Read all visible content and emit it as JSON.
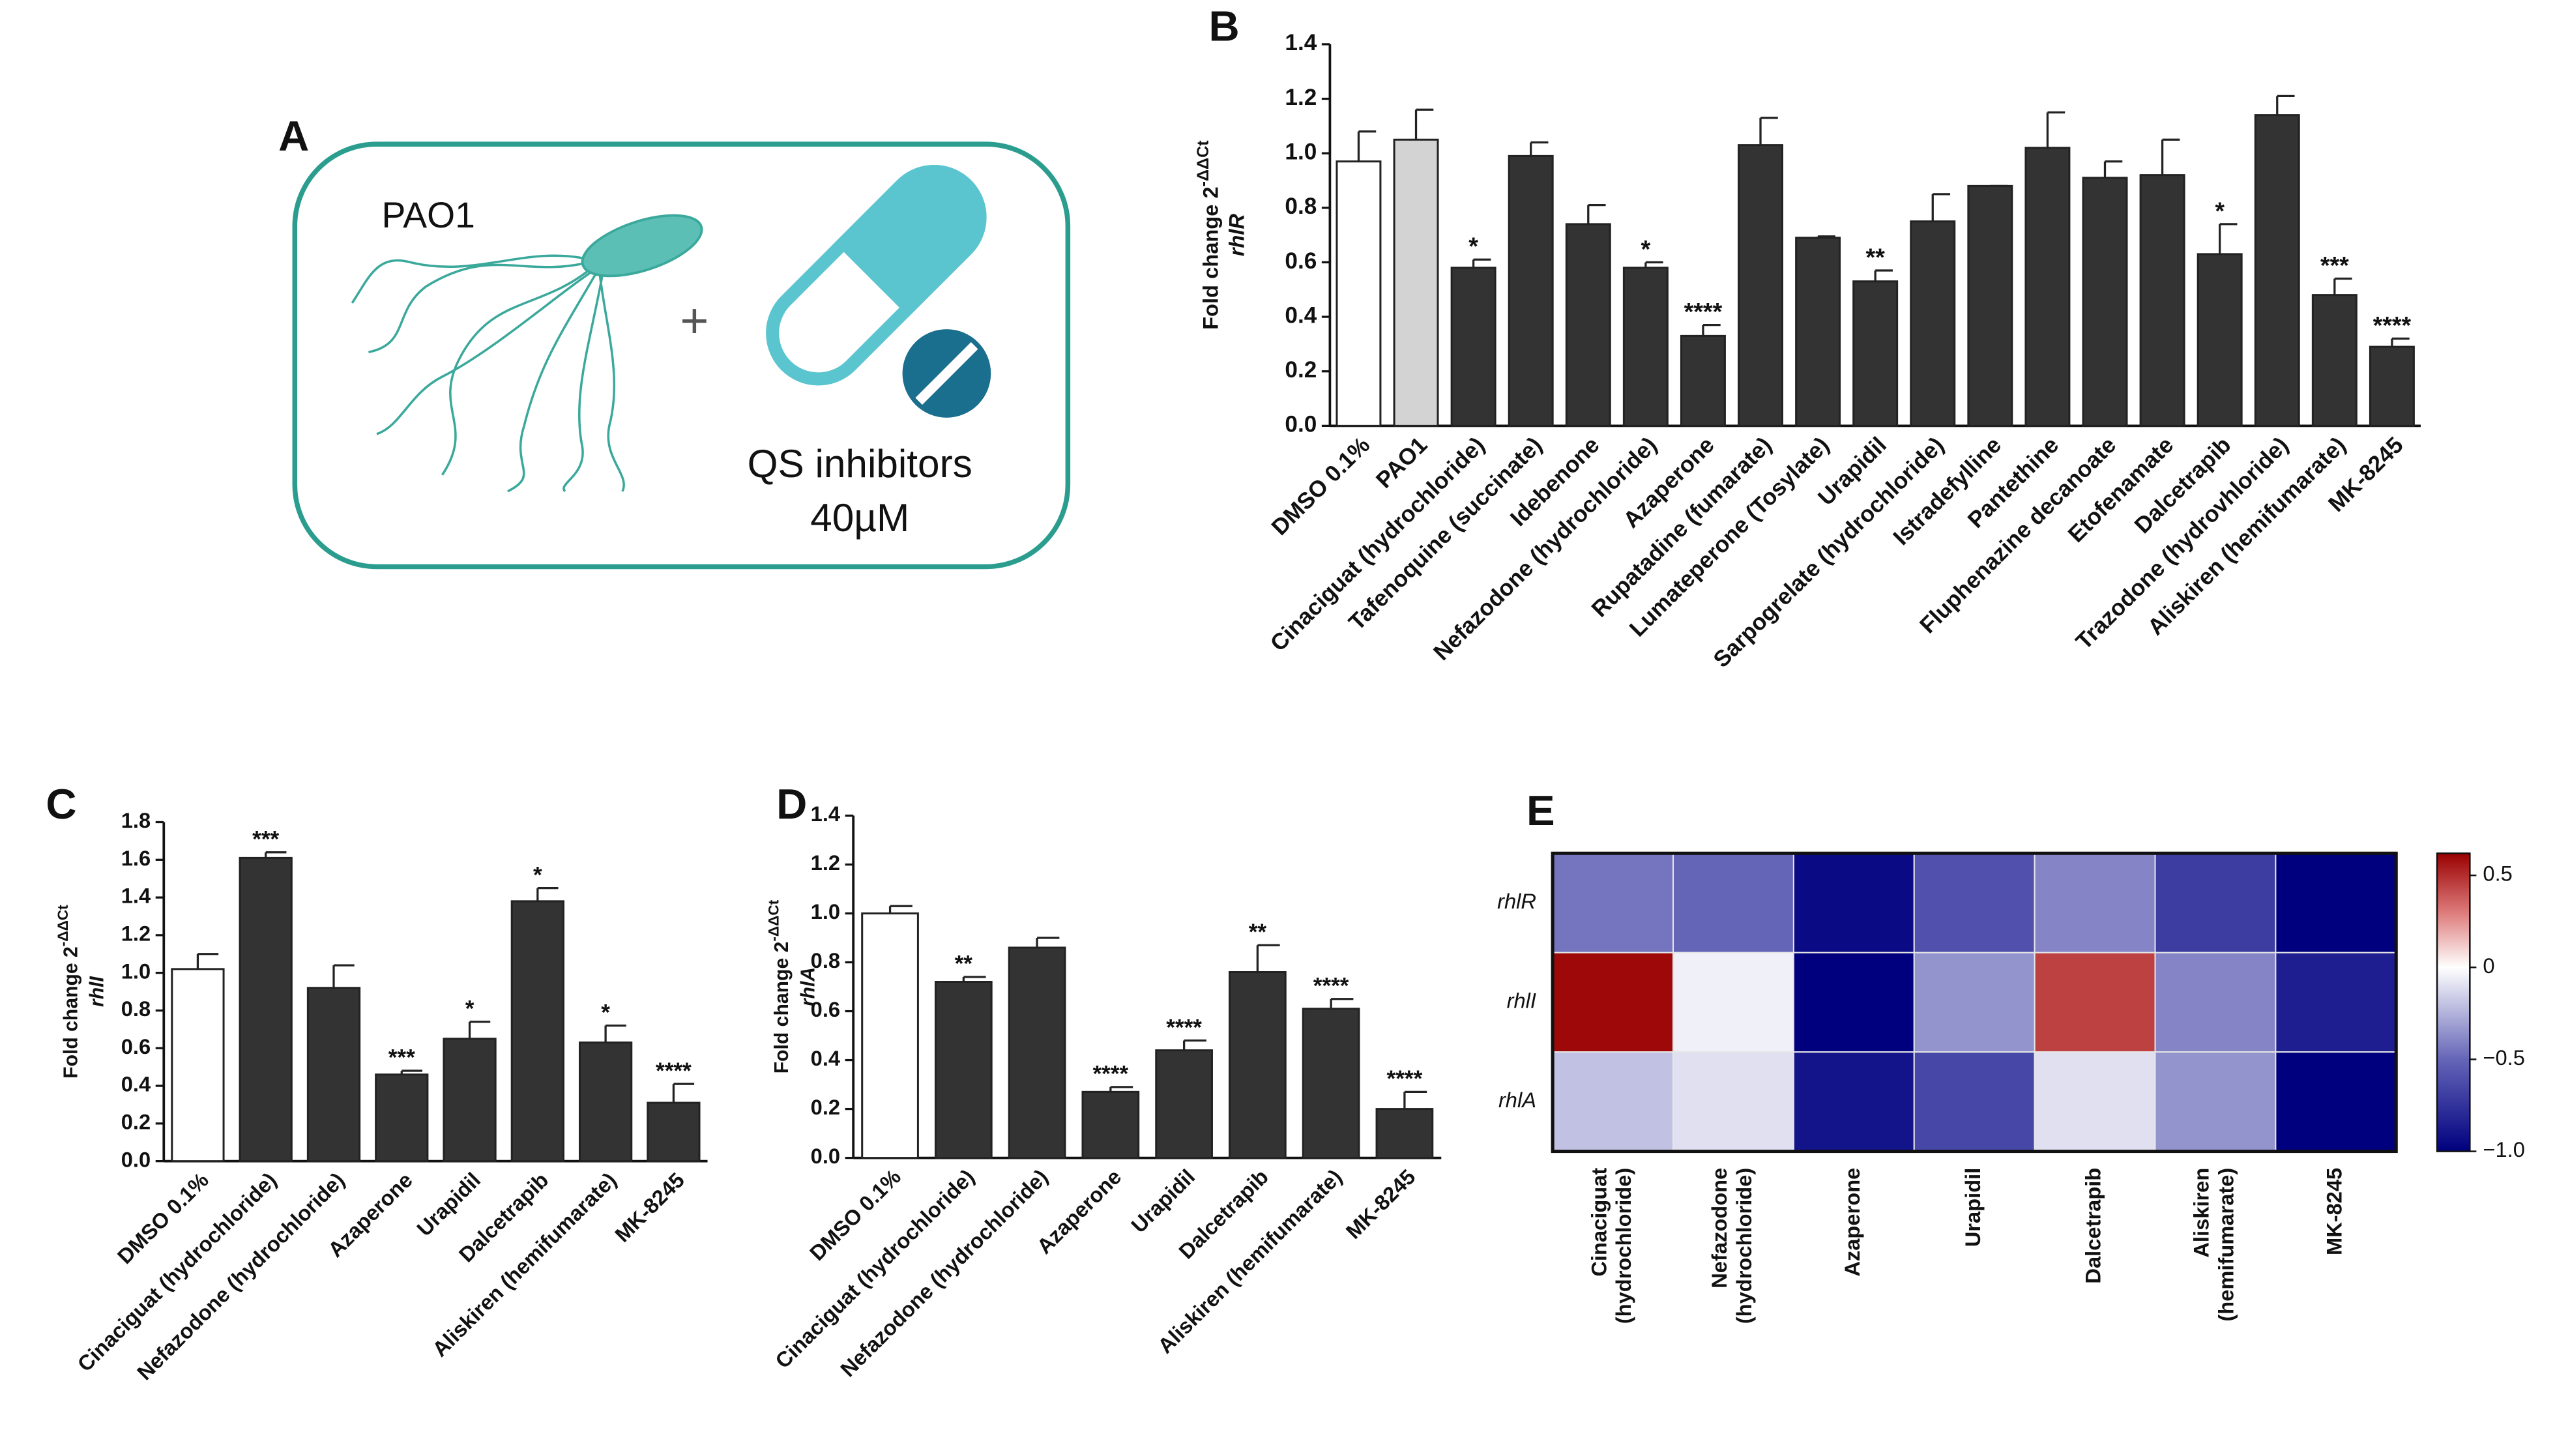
{
  "panel_a": {
    "panel_label": "A",
    "organism": "PAO1",
    "plus": "+",
    "drug_line1": "QS inhibitors",
    "drug_line2": "40µM"
  },
  "chart_data": [
    {
      "type": "bar",
      "panel_label": "B",
      "y_label": "Fold change 2",
      "y_label_sup": "-ΔΔCt",
      "gene": "rhlR",
      "categories": [
        "DMSO 0.1%",
        "PAO1",
        "Cinaciguat (hydrochloride)",
        "Tafenoquine (succinate)",
        "Idebenone",
        "Nefazodone (hydrochloride)",
        "Azaperone",
        "Rupatadine (fumarate)",
        "Lumateperone (Tosylate)",
        "Urapidil",
        "Sarpogrelate (hydrochloride)",
        "Istradefylline",
        "Pantethine",
        "Fluphenazine decanoate",
        "Etofenamate",
        "Dalcetrapib",
        "Trazodone (hydrovhloride)",
        "Aliskiren (hemifumarate)",
        "MK-8245"
      ],
      "values": [
        0.97,
        1.05,
        0.58,
        0.99,
        0.74,
        0.58,
        0.33,
        1.03,
        0.69,
        0.53,
        0.75,
        0.88,
        1.02,
        0.91,
        0.92,
        0.63,
        1.14,
        0.48,
        0.29
      ],
      "errors": [
        0.11,
        0.11,
        0.03,
        0.05,
        0.07,
        0.02,
        0.04,
        0.1,
        0.005,
        0.04,
        0.1,
        0,
        0.13,
        0.06,
        0.13,
        0.11,
        0.07,
        0.06,
        0.03
      ],
      "significance": [
        null,
        null,
        "*",
        null,
        null,
        "*",
        "****",
        null,
        null,
        "**",
        null,
        null,
        null,
        null,
        null,
        "*",
        null,
        "***",
        "****"
      ],
      "bar_colors": [
        "#ffffff",
        "#d3d3d3",
        "#333333",
        "#333333",
        "#333333",
        "#333333",
        "#333333",
        "#333333",
        "#333333",
        "#333333",
        "#333333",
        "#333333",
        "#333333",
        "#333333",
        "#333333",
        "#333333",
        "#333333",
        "#333333",
        "#333333"
      ],
      "ylim": [
        0,
        1.4
      ],
      "yticks": [
        {
          "value": 0,
          "label": "0.0"
        },
        0.2,
        0.4,
        0.6,
        0.8,
        {
          "value": 1,
          "label": "1.0"
        },
        1.2,
        1.4
      ]
    },
    {
      "type": "bar",
      "panel_label": "C",
      "y_label": "Fold change 2",
      "y_label_sup": "-ΔΔCt",
      "gene": "rhlI",
      "categories": [
        "DMSO 0.1%",
        "Cinaciguat (hydrochloride)",
        "Nefazodone (hydrochloride)",
        "Azaperone",
        "Urapidil",
        "Dalcetrapib",
        "Aliskiren (hemifumarate)",
        "MK-8245"
      ],
      "values": [
        1.02,
        1.61,
        0.92,
        0.46,
        0.65,
        1.38,
        0.63,
        0.31
      ],
      "errors": [
        0.08,
        0.03,
        0.12,
        0.02,
        0.09,
        0.07,
        0.09,
        0.1
      ],
      "significance": [
        null,
        "***",
        null,
        "***",
        "*",
        "*",
        "*",
        "****"
      ],
      "bar_colors": [
        "#ffffff",
        "#333333",
        "#333333",
        "#333333",
        "#333333",
        "#333333",
        "#333333",
        "#333333"
      ],
      "ylim": [
        0,
        1.8
      ],
      "yticks": [
        {
          "value": 0,
          "label": "0.0"
        },
        0.2,
        0.4,
        0.6,
        0.8,
        {
          "value": 1,
          "label": "1.0"
        },
        1.2,
        1.4,
        1.6,
        1.8
      ]
    },
    {
      "type": "bar",
      "panel_label": "D",
      "y_label": "Fold change 2",
      "y_label_sup": "-ΔΔCt",
      "gene": "rhlA",
      "categories": [
        "DMSO 0.1%",
        "Cinaciguat (hydrochloride)",
        "Nefazodone (hydrochloride)",
        "Azaperone",
        "Urapidil",
        "Dalcetrapib",
        "Aliskiren (hemifumarate)",
        "MK-8245"
      ],
      "values": [
        1.0,
        0.72,
        0.86,
        0.27,
        0.44,
        0.76,
        0.61,
        0.2
      ],
      "errors": [
        0.03,
        0.02,
        0.04,
        0.02,
        0.04,
        0.11,
        0.04,
        0.07
      ],
      "significance": [
        null,
        "**",
        null,
        "****",
        "****",
        "**",
        "****",
        "****"
      ],
      "bar_colors": [
        "#ffffff",
        "#333333",
        "#333333",
        "#333333",
        "#333333",
        "#333333",
        "#333333",
        "#333333"
      ],
      "ylim": [
        0,
        1.4
      ],
      "yticks": [
        {
          "value": 0,
          "label": "0.0"
        },
        0.2,
        0.4,
        0.6,
        0.8,
        {
          "value": 1,
          "label": "1.0"
        },
        1.2,
        1.4
      ]
    },
    {
      "type": "heatmap",
      "panel_label": "E",
      "rows": [
        "rhlR",
        "rhlI",
        "rhlA"
      ],
      "columns": [
        [
          "Cinaciguat",
          "(hydrochloride)"
        ],
        [
          "Nefazodone",
          "(hydrochloride)"
        ],
        [
          "Azaperone"
        ],
        [
          "Urapidil"
        ],
        [
          "Dalcetrapib"
        ],
        [
          "Aliskiren",
          "(hemifumarate)"
        ],
        [
          "MK-8245"
        ]
      ],
      "values": [
        [
          -0.45,
          -0.5,
          -0.95,
          -0.6,
          -0.4,
          -0.7,
          -1.0
        ],
        [
          0.6,
          -0.05,
          -1.0,
          -0.35,
          0.45,
          -0.4,
          -0.85
        ],
        [
          -0.2,
          -0.1,
          -0.9,
          -0.65,
          -0.1,
          -0.35,
          -1.0
        ]
      ],
      "clim": [
        -1.0,
        0.62
      ],
      "cticks": [
        0.5,
        0,
        {
          "value": -0.5,
          "label": "−0.5"
        },
        {
          "value": -1.0,
          "label": "−1.0"
        }
      ],
      "colormap": [
        {
          "value": -1.0,
          "color": "#00007f"
        },
        {
          "value": -0.5,
          "color": "#6565b8"
        },
        {
          "value": 0,
          "color": "#ffffff"
        },
        {
          "value": 0.3,
          "color": "#dd7a7a"
        },
        {
          "value": 0.62,
          "color": "#9a0000"
        }
      ]
    }
  ]
}
